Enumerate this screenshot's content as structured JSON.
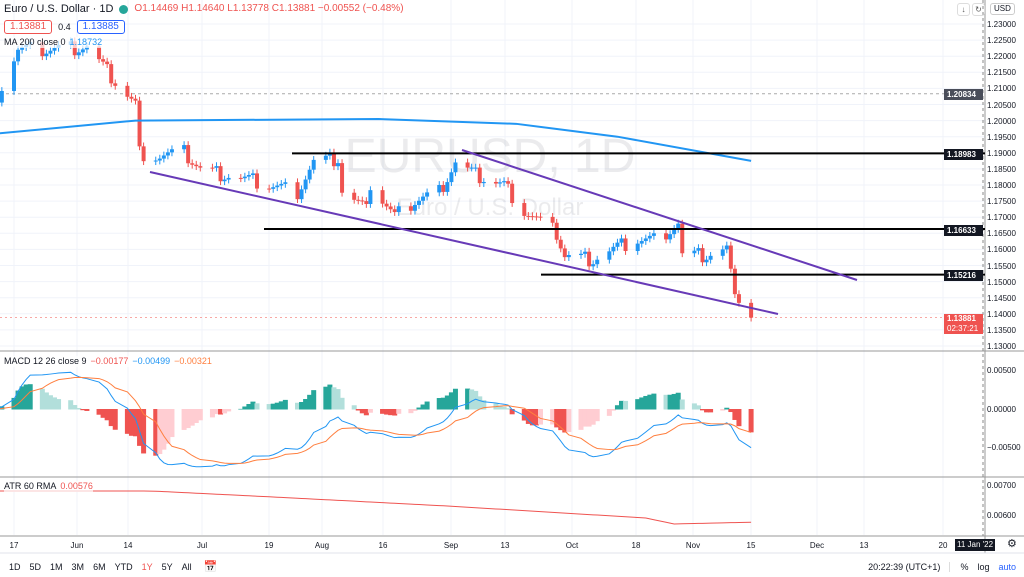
{
  "header": {
    "symbol_title": "Euro / U.S. Dollar · 1D",
    "ohlc": "O1.14469 H1.14640 L1.13778 C1.13881 −0.00552 (−0.48%)",
    "bid": "1.13881",
    "spread": "0.4",
    "ask": "1.13885",
    "ma_label": "MA 200 close 0",
    "ma_value": "1.18732",
    "currency": "USD"
  },
  "watermark": {
    "symbol": "EURUSD, 1D",
    "name": "Euro / U.S. Dollar"
  },
  "price_axis": [
    "1.23000",
    "1.22500",
    "1.22000",
    "1.21500",
    "1.21000",
    "1.20500",
    "1.20000",
    "1.19500",
    "1.19000",
    "1.18500",
    "1.18000",
    "1.17500",
    "1.17000",
    "1.16500",
    "1.16000",
    "1.15500",
    "1.15000",
    "1.14500",
    "1.14000",
    "1.13500",
    "1.13000"
  ],
  "price_tags": {
    "crosshair": "1.20834",
    "level1": "1.18983",
    "level2": "1.16633",
    "level3": "1.15216",
    "last": "1.13881",
    "countdown": "02:37:21"
  },
  "macd": {
    "label": "MACD 12 26 close 9",
    "hist": "−0.00177",
    "macd": "−0.00499",
    "signal": "−0.00321",
    "axis": [
      "0.00500",
      "0.00000",
      "−0.00500"
    ]
  },
  "atr": {
    "label": "ATR 60 RMA",
    "value": "0.00576",
    "axis": [
      "0.00700",
      "0.00600"
    ]
  },
  "time_axis": [
    "17",
    "Jun",
    "14",
    "Jul",
    "19",
    "Aug",
    "16",
    "Sep",
    "13",
    "Oct",
    "18",
    "Nov",
    "15",
    "Dec",
    "13",
    "20"
  ],
  "crosshair_date": "11 Jan '22",
  "bottom": {
    "ranges": [
      "1D",
      "5D",
      "1M",
      "3M",
      "6M",
      "YTD",
      "1Y",
      "5Y",
      "All"
    ],
    "time": "20:22:39 (UTC+1)",
    "percent": "%",
    "log": "log",
    "auto": "auto"
  },
  "colors": {
    "up": "#2196f3",
    "down": "#ef5350",
    "ma": "#2196f3",
    "channel": "#673ab7",
    "macd": "#2196f3",
    "signal": "#ff7f3f"
  },
  "chart_data": {
    "type": "candlestick",
    "keypoints": [
      [
        "2021-05-13",
        1.208
      ],
      [
        "2021-05-18",
        1.222
      ],
      [
        "2021-05-25",
        1.222
      ],
      [
        "2021-06-04",
        1.223
      ],
      [
        "2021-06-11",
        1.212
      ],
      [
        "2021-06-16",
        1.205
      ],
      [
        "2021-06-17",
        1.19
      ],
      [
        "2021-06-22",
        1.189
      ],
      [
        "2021-06-28",
        1.19
      ],
      [
        "2021-07-02",
        1.185
      ],
      [
        "2021-07-09",
        1.183
      ],
      [
        "2021-07-19",
        1.18
      ],
      [
        "2021-07-26",
        1.178
      ],
      [
        "2021-07-30",
        1.187
      ],
      [
        "2021-08-05",
        1.188
      ],
      [
        "2021-08-06",
        1.178
      ],
      [
        "2021-08-11",
        1.173
      ],
      [
        "2021-08-13",
        1.18
      ],
      [
        "2021-08-19",
        1.17
      ],
      [
        "2021-08-24",
        1.175
      ],
      [
        "2021-08-30",
        1.178
      ],
      [
        "2021-09-03",
        1.187
      ],
      [
        "2021-09-08",
        1.183
      ],
      [
        "2021-09-15",
        1.18
      ],
      [
        "2021-09-20",
        1.172
      ],
      [
        "2021-09-28",
        1.165
      ],
      [
        "2021-09-30",
        1.158
      ],
      [
        "2021-10-07",
        1.157
      ],
      [
        "2021-10-12",
        1.16
      ],
      [
        "2021-10-18",
        1.163
      ],
      [
        "2021-10-22",
        1.163
      ],
      [
        "2021-10-28",
        1.168
      ],
      [
        "2021-10-29",
        1.158
      ],
      [
        "2021-11-04",
        1.158
      ],
      [
        "2021-11-09",
        1.16
      ],
      [
        "2021-11-10",
        1.152
      ],
      [
        "2021-11-12",
        1.145
      ],
      [
        "2021-11-15",
        1.1388
      ]
    ],
    "ma200": [
      [
        "2021-05-13",
        1.196
      ],
      [
        "2021-06-16",
        1.2
      ],
      [
        "2021-08-15",
        1.2005
      ],
      [
        "2021-09-18",
        1.199
      ],
      [
        "2021-10-13",
        1.195
      ],
      [
        "2021-11-15",
        1.1875
      ]
    ],
    "atr": [
      [
        "2021-05-13",
        0.0068
      ],
      [
        "2021-06-20",
        0.0068
      ],
      [
        "2021-07-20",
        0.0066
      ],
      [
        "2021-09-01",
        0.0063
      ],
      [
        "2021-10-20",
        0.0059
      ],
      [
        "2021-10-27",
        0.0057
      ],
      [
        "2021-11-15",
        0.00576
      ]
    ]
  }
}
